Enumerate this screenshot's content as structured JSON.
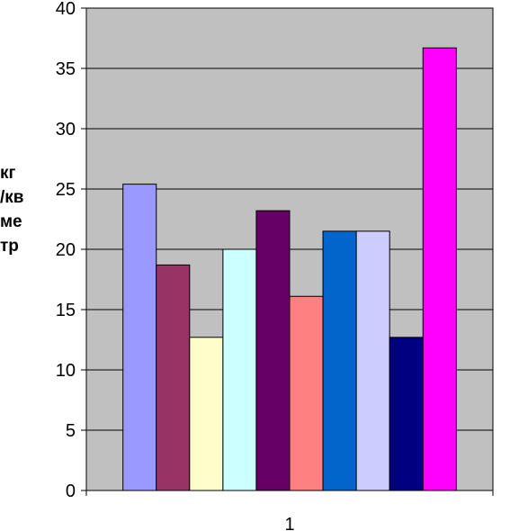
{
  "chart_data": {
    "type": "bar",
    "categories": [
      "1"
    ],
    "ylabel_lines": [
      "кг",
      "/кв",
      "ме",
      "тр"
    ],
    "ylim": [
      0,
      40
    ],
    "yticks": [
      0,
      5,
      10,
      15,
      20,
      25,
      30,
      35,
      40
    ],
    "grid": true,
    "plot_background": "#c0c0c0",
    "series": [
      {
        "values": [
          25.4
        ],
        "color": "#9999ff"
      },
      {
        "values": [
          18.7
        ],
        "color": "#993366"
      },
      {
        "values": [
          12.7
        ],
        "color": "#ffffcc"
      },
      {
        "values": [
          20.0
        ],
        "color": "#ccffff"
      },
      {
        "values": [
          23.2
        ],
        "color": "#660066"
      },
      {
        "values": [
          16.1
        ],
        "color": "#ff8080"
      },
      {
        "values": [
          21.5
        ],
        "color": "#0066cc"
      },
      {
        "values": [
          21.5
        ],
        "color": "#ccccff"
      },
      {
        "values": [
          12.7
        ],
        "color": "#000080"
      },
      {
        "values": [
          36.7
        ],
        "color": "#ff00ff"
      }
    ]
  }
}
